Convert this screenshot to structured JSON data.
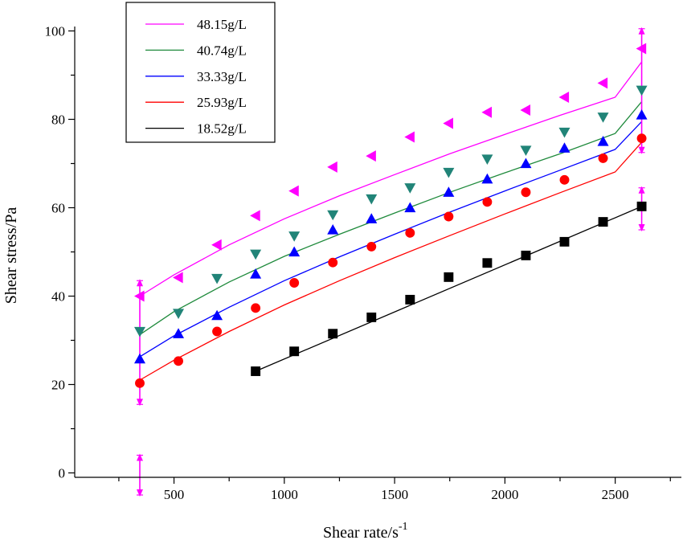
{
  "chart_data": {
    "type": "scatter",
    "title": "",
    "xlabel": "Shear rate/s",
    "xlabel_sup": "-1",
    "ylabel": "Shear stress/Pa",
    "xlim": [
      50,
      2800
    ],
    "ylim": [
      -1,
      101
    ],
    "xticks": [
      500,
      1000,
      1500,
      2000,
      2500
    ],
    "xtick_labels": [
      "500",
      "1000",
      "1500",
      "2000",
      "2500"
    ],
    "xminor": [
      250,
      750,
      1250,
      1750,
      2250,
      2750
    ],
    "yticks": [
      0,
      20,
      40,
      60,
      80,
      100
    ],
    "ytick_labels": [
      "0",
      "20",
      "40",
      "60",
      "80",
      "100"
    ],
    "yminor": [
      10,
      30,
      50,
      70,
      90
    ],
    "grid": false,
    "legend_position": "top-left",
    "series": [
      {
        "name": "48.15g/L",
        "color": "#ff00ff",
        "marker": "triangle-left",
        "x": [
          345,
          520,
          695,
          870,
          1045,
          1220,
          1395,
          1570,
          1745,
          1920,
          2095,
          2270,
          2445,
          2620
        ],
        "y": [
          40.0,
          44.2,
          51.6,
          58.2,
          63.8,
          69.2,
          71.7,
          76.0,
          79.1,
          81.6,
          82.1,
          85.0,
          88.2,
          96.0
        ],
        "fit": [
          [
            345,
            40.0
          ],
          [
            500,
            44.8
          ],
          [
            750,
            51.6
          ],
          [
            1000,
            57.5
          ],
          [
            1250,
            62.7
          ],
          [
            1500,
            67.5
          ],
          [
            1750,
            72.2
          ],
          [
            2000,
            76.6
          ],
          [
            2250,
            80.9
          ],
          [
            2500,
            85.0
          ],
          [
            2620,
            93.0
          ]
        ]
      },
      {
        "name": "40.74g/L",
        "color": "#1f8a3c",
        "marker": "triangle-down",
        "marker_color": "#218478",
        "x": [
          345,
          520,
          695,
          870,
          1045,
          1220,
          1395,
          1570,
          1745,
          1920,
          2095,
          2270,
          2445,
          2620
        ],
        "y": [
          32.0,
          36.1,
          44.0,
          49.5,
          53.6,
          58.4,
          62.0,
          64.5,
          68.0,
          71.0,
          73.0,
          77.1,
          80.5,
          86.6
        ],
        "fit": [
          [
            345,
            31.3
          ],
          [
            500,
            36.5
          ],
          [
            750,
            43.2
          ],
          [
            1000,
            49.0
          ],
          [
            1250,
            54.0
          ],
          [
            1500,
            58.8
          ],
          [
            1750,
            63.5
          ],
          [
            2000,
            67.9
          ],
          [
            2250,
            72.2
          ],
          [
            2500,
            76.8
          ],
          [
            2620,
            84.0
          ]
        ]
      },
      {
        "name": "33.33g/L",
        "color": "#0000ff",
        "marker": "triangle-up",
        "x": [
          345,
          520,
          695,
          870,
          1045,
          1220,
          1395,
          1570,
          1745,
          1920,
          2095,
          2270,
          2445,
          2620
        ],
        "y": [
          25.8,
          31.5,
          35.6,
          45.0,
          50.0,
          55.0,
          57.5,
          60.0,
          63.5,
          66.5,
          70.0,
          73.5,
          75.0,
          81.0
        ],
        "fit": [
          [
            345,
            26.3
          ],
          [
            500,
            31.0
          ],
          [
            750,
            37.5
          ],
          [
            1000,
            43.5
          ],
          [
            1250,
            48.9
          ],
          [
            1500,
            54.0
          ],
          [
            1750,
            59.0
          ],
          [
            2000,
            63.8
          ],
          [
            2250,
            68.5
          ],
          [
            2500,
            73.2
          ],
          [
            2620,
            79.5
          ]
        ]
      },
      {
        "name": "25.93g/L",
        "color": "#ff0000",
        "marker": "circle",
        "x": [
          345,
          520,
          695,
          870,
          1045,
          1220,
          1395,
          1570,
          1745,
          1920,
          2095,
          2270,
          2445,
          2620
        ],
        "y": [
          20.3,
          25.3,
          32.0,
          37.3,
          43.0,
          47.6,
          51.2,
          54.3,
          58.0,
          61.3,
          63.5,
          66.3,
          71.2,
          75.7
        ],
        "fit": [
          [
            345,
            21.0
          ],
          [
            500,
            25.5
          ],
          [
            750,
            32.0
          ],
          [
            1000,
            38.0
          ],
          [
            1250,
            43.5
          ],
          [
            1500,
            48.7
          ],
          [
            1750,
            53.7
          ],
          [
            2000,
            58.6
          ],
          [
            2250,
            63.4
          ],
          [
            2500,
            68.1
          ],
          [
            2620,
            74.8
          ]
        ]
      },
      {
        "name": "18.52g/L",
        "color": "#000000",
        "marker": "square",
        "x": [
          870,
          1045,
          1220,
          1395,
          1570,
          1745,
          1920,
          2095,
          2270,
          2445,
          2620
        ],
        "y": [
          23.0,
          27.5,
          31.5,
          35.2,
          39.2,
          44.3,
          47.5,
          49.2,
          52.3,
          56.8,
          60.3
        ],
        "fit": [
          [
            870,
            23.0
          ],
          [
            2620,
            60.3
          ]
        ]
      }
    ],
    "arrows": {
      "color": "#ff00ff",
      "items": [
        {
          "x": 345,
          "y1": 43.5,
          "y2": 15.5
        },
        {
          "x": 345,
          "y1": 4.0,
          "y2": -5.0
        },
        {
          "x": 2620,
          "y1": 100.5,
          "y2": 72.5
        },
        {
          "x": 2620,
          "y1": 64.5,
          "y2": 55.0
        }
      ]
    }
  }
}
